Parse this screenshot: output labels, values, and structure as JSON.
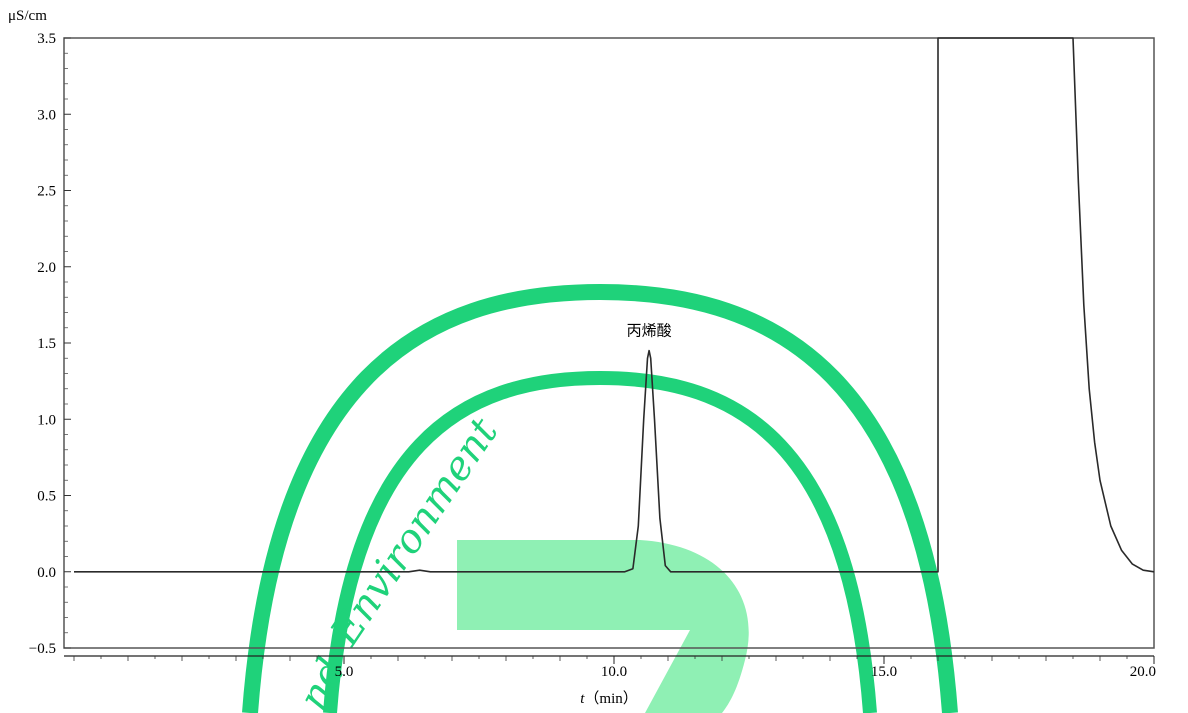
{
  "chart_data": {
    "type": "line",
    "title": "",
    "ylabel": "μS/cm",
    "xlabel_var": "t",
    "xlabel_unit": "（min）",
    "xlim": [
      0,
      20
    ],
    "ylim": [
      -0.5,
      3.5
    ],
    "grid": false,
    "x_ticks": [
      "5.0",
      "10.0",
      "15.0",
      "20.0"
    ],
    "y_ticks": [
      "3.5",
      "3.0",
      "2.5",
      "2.0",
      "1.5",
      "1.0",
      "0.5",
      "0.0",
      "−0.5"
    ],
    "peak_annotation": {
      "label": "丙烯酸",
      "x": 10.65,
      "y": 1.45
    },
    "series": [
      {
        "x": [
          0,
          6.2,
          6.4,
          6.6,
          10.2,
          10.35,
          10.45,
          10.55,
          10.62,
          10.65,
          10.68,
          10.75,
          10.85,
          10.95,
          11.05,
          16.0,
          16.0,
          16.05,
          18.5,
          18.5,
          18.6,
          18.7,
          18.8,
          18.9,
          19.0,
          19.2,
          19.4,
          19.6,
          19.8,
          20.0
        ],
        "y": [
          0.0,
          0.0,
          0.01,
          0.0,
          0.0,
          0.02,
          0.3,
          1.0,
          1.4,
          1.45,
          1.4,
          1.0,
          0.35,
          0.04,
          0.0,
          0.0,
          3.5,
          3.5,
          3.5,
          3.5,
          2.55,
          1.75,
          1.2,
          0.85,
          0.6,
          0.3,
          0.14,
          0.05,
          0.01,
          0.0
        ]
      }
    ]
  },
  "watermark": {
    "arc_text": "Environment",
    "arc_text_partial": "nd",
    "color": "#1fd27a",
    "block_color": "#8ff0b4"
  }
}
